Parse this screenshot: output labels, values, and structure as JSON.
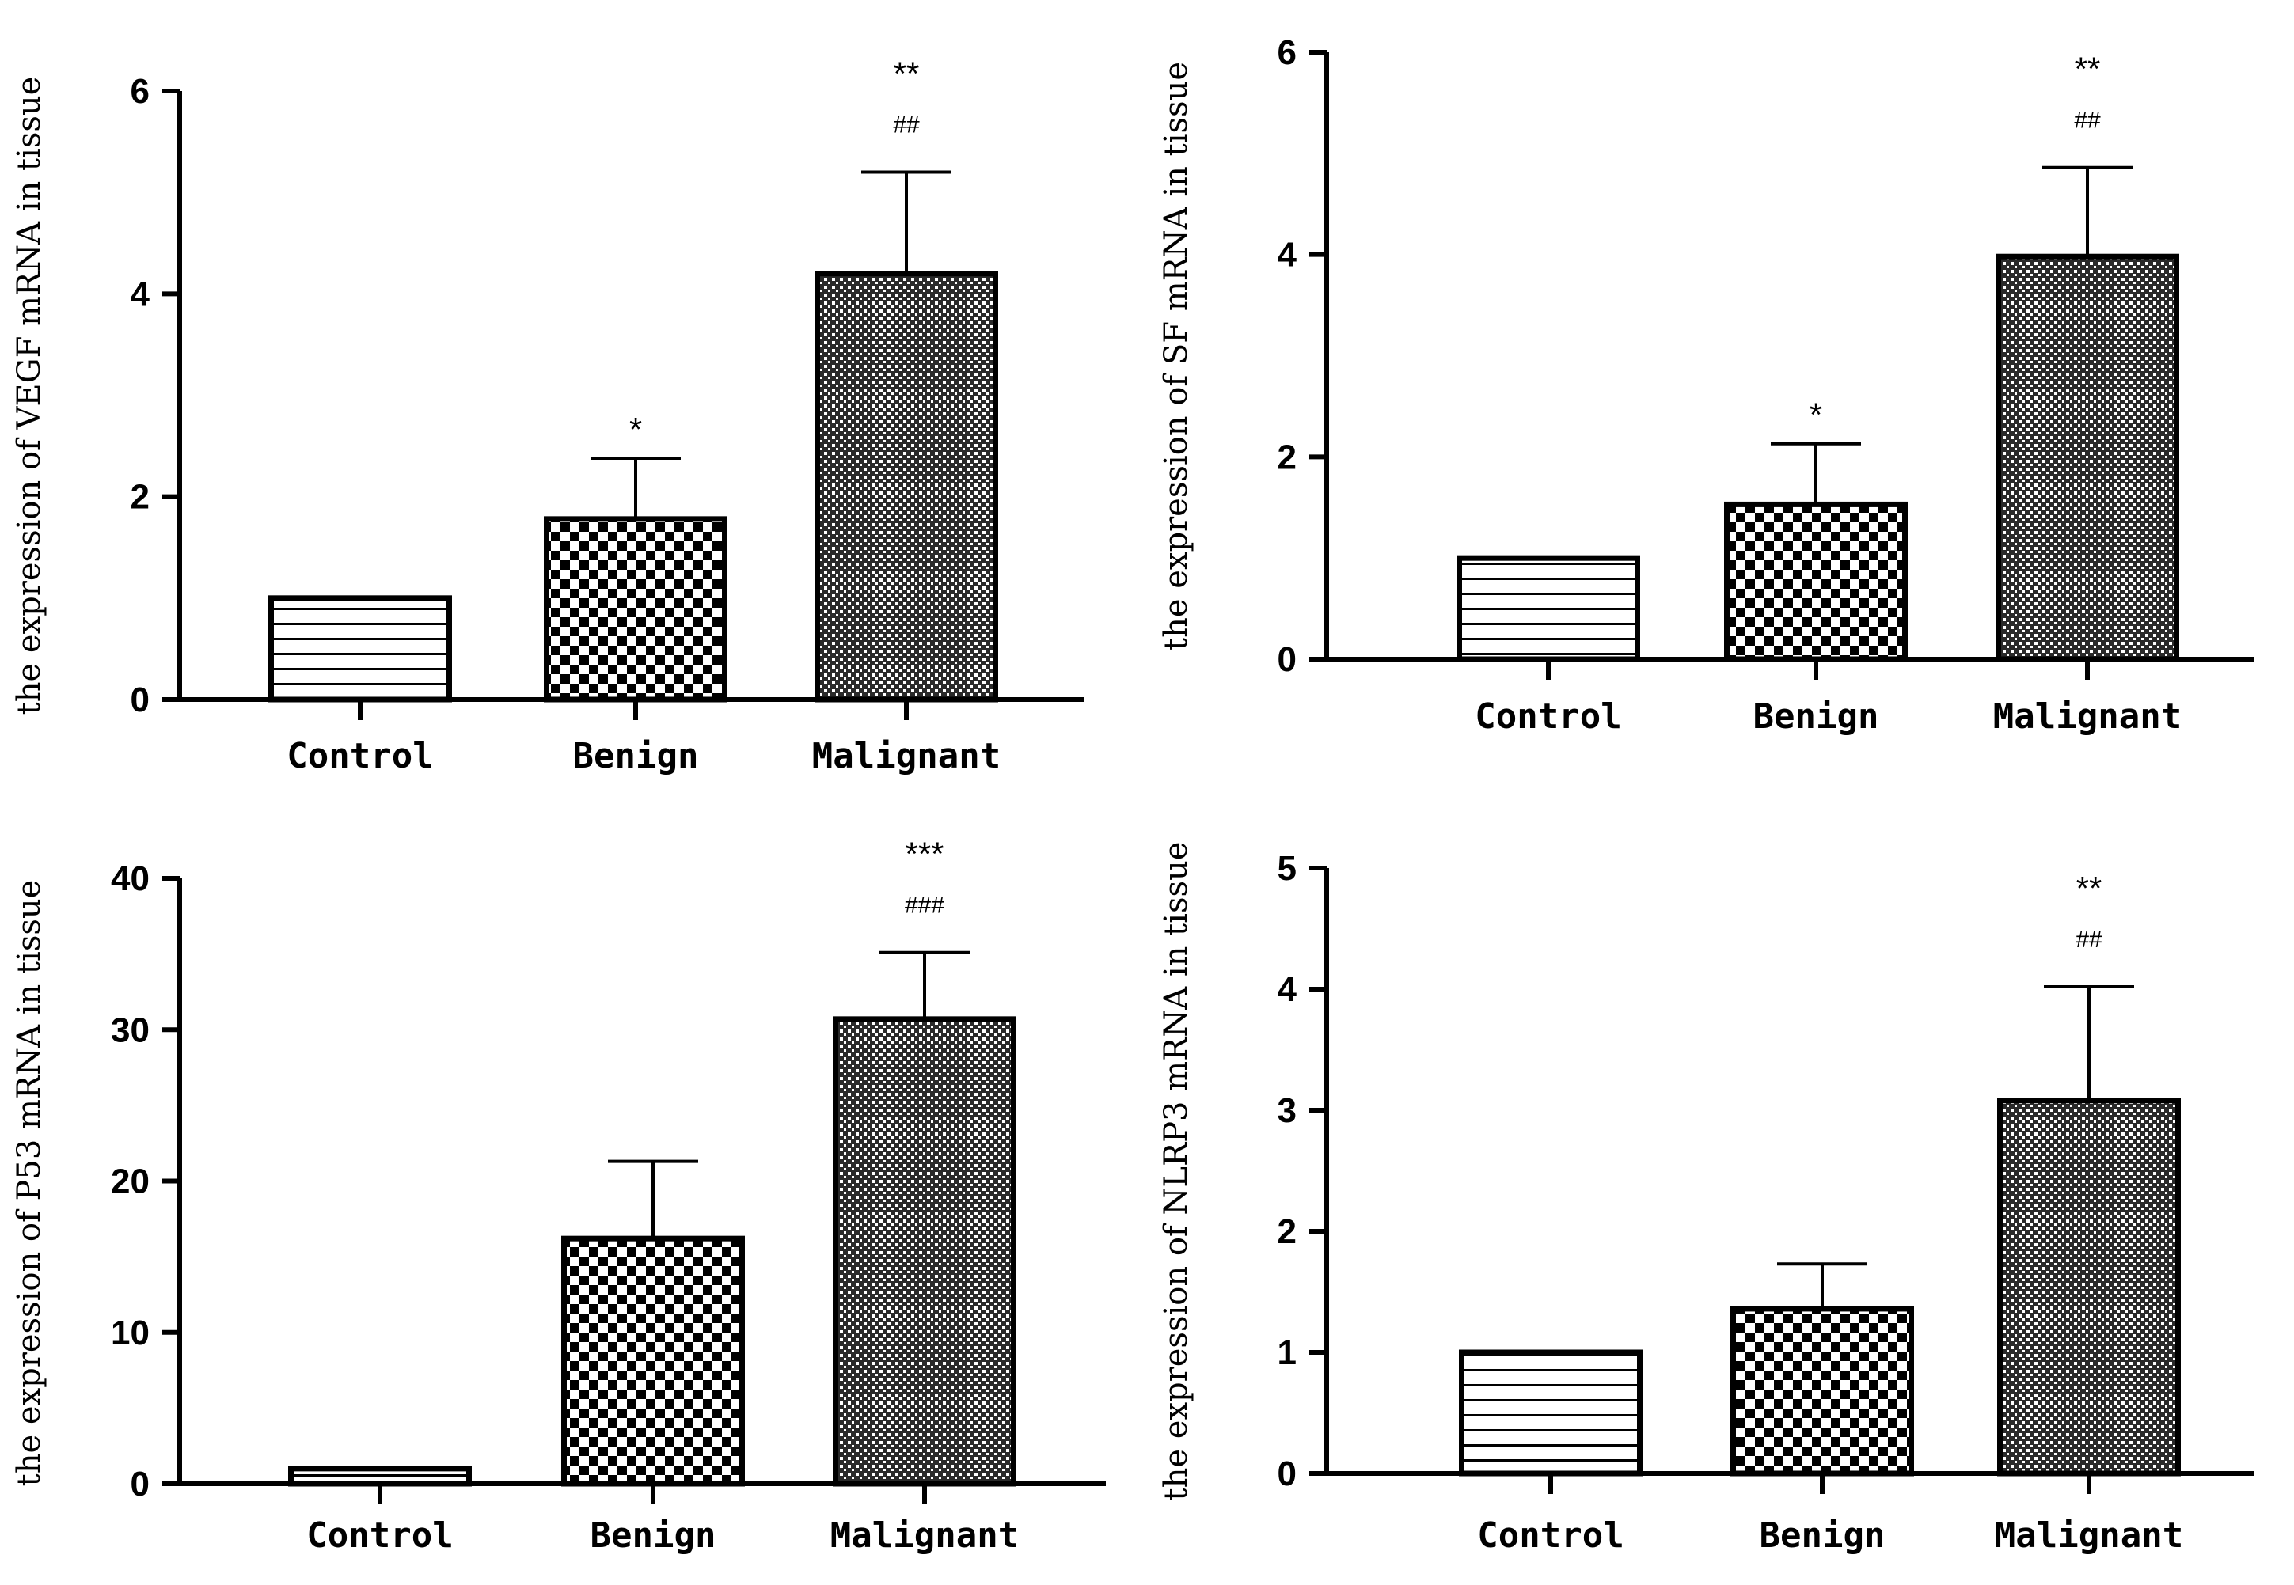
{
  "chart_data": [
    {
      "type": "bar",
      "ylabel": "the expression of  VEGF mRNA  in tissue",
      "categories": [
        "Control",
        "Benign",
        "Malignant"
      ],
      "values": [
        1.0,
        1.78,
        4.2
      ],
      "errors": [
        0,
        0.6,
        1.0
      ],
      "ylim": [
        0,
        6
      ],
      "yticks": [
        0,
        2,
        4,
        6
      ],
      "significance": [
        {
          "star": "",
          "hash": ""
        },
        {
          "star": "*",
          "hash": ""
        },
        {
          "star": "**",
          "hash": "##"
        }
      ],
      "patterns": [
        "hlines",
        "checker",
        "finecheck"
      ]
    },
    {
      "type": "bar",
      "ylabel": "the expression of SF mRNA  in tissue",
      "categories": [
        "Control",
        "Benign",
        "Malignant"
      ],
      "values": [
        1.0,
        1.53,
        3.98
      ],
      "errors": [
        0,
        0.6,
        0.88
      ],
      "ylim": [
        0,
        6
      ],
      "yticks": [
        0,
        2,
        4,
        6
      ],
      "significance": [
        {
          "star": "",
          "hash": ""
        },
        {
          "star": "*",
          "hash": ""
        },
        {
          "star": "**",
          "hash": "##"
        }
      ],
      "patterns": [
        "hlines",
        "checker",
        "finecheck"
      ]
    },
    {
      "type": "bar",
      "ylabel": "the expression of P53 mRNA  in tissue",
      "categories": [
        "Control",
        "Benign",
        "Malignant"
      ],
      "values": [
        1.0,
        16.2,
        30.7
      ],
      "errors": [
        0,
        5.1,
        4.4
      ],
      "ylim": [
        0,
        40
      ],
      "yticks": [
        0,
        10,
        20,
        30,
        40
      ],
      "significance": [
        {
          "star": "",
          "hash": ""
        },
        {
          "star": "",
          "hash": ""
        },
        {
          "star": "***",
          "hash": "###"
        }
      ],
      "patterns": [
        "hlines",
        "checker",
        "finecheck"
      ]
    },
    {
      "type": "bar",
      "ylabel": "the expression of NLRP3 mRNA  in tissue",
      "categories": [
        "Control",
        "Benign",
        "Malignant"
      ],
      "values": [
        1.0,
        1.36,
        3.08
      ],
      "errors": [
        0,
        0.37,
        0.94
      ],
      "ylim": [
        0,
        5
      ],
      "yticks": [
        0,
        1,
        2,
        3,
        4,
        5
      ],
      "significance": [
        {
          "star": "",
          "hash": ""
        },
        {
          "star": "",
          "hash": ""
        },
        {
          "star": "**",
          "hash": "##"
        }
      ],
      "patterns": [
        "hlines",
        "checker",
        "finecheck"
      ]
    }
  ],
  "colors": {
    "bar_stroke": "#000000",
    "background": "#ffffff"
  }
}
